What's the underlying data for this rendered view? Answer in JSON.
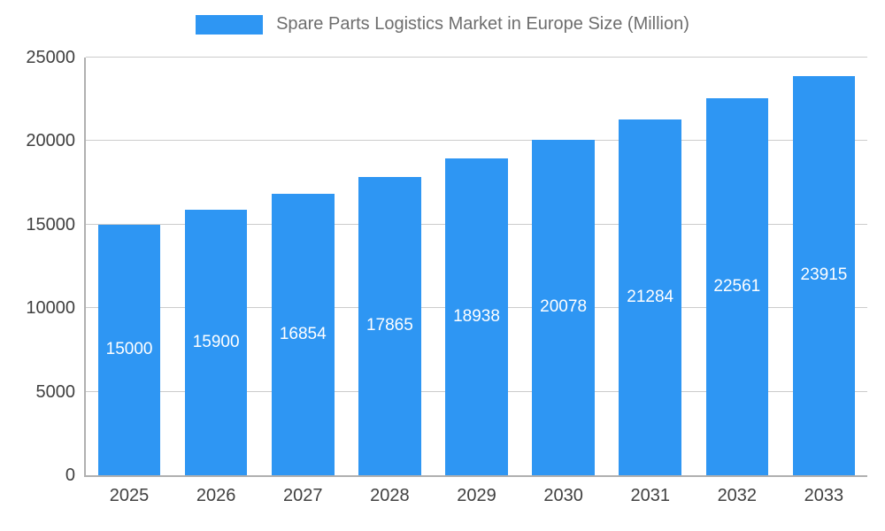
{
  "legend": {
    "title": "Spare Parts Logistics Market in Europe Size (Million)"
  },
  "chart_data": {
    "type": "bar",
    "title": "Spare Parts Logistics Market in Europe Size (Million)",
    "categories": [
      "2025",
      "2026",
      "2027",
      "2028",
      "2029",
      "2030",
      "2031",
      "2032",
      "2033"
    ],
    "values": [
      15000,
      15900,
      16854,
      17865,
      18938,
      20078,
      21284,
      22561,
      23915
    ],
    "xlabel": "",
    "ylabel": "",
    "ylim": [
      0,
      25000
    ],
    "yticks": [
      0,
      5000,
      10000,
      15000,
      20000,
      25000
    ],
    "grid": true,
    "legend_position": "top",
    "bar_color": "#2e96f3",
    "value_label_color": "#ffffff",
    "grid_color": "#cccccc",
    "axis_line_color": "#b0b0b0",
    "tick_label_color": "#404040"
  }
}
